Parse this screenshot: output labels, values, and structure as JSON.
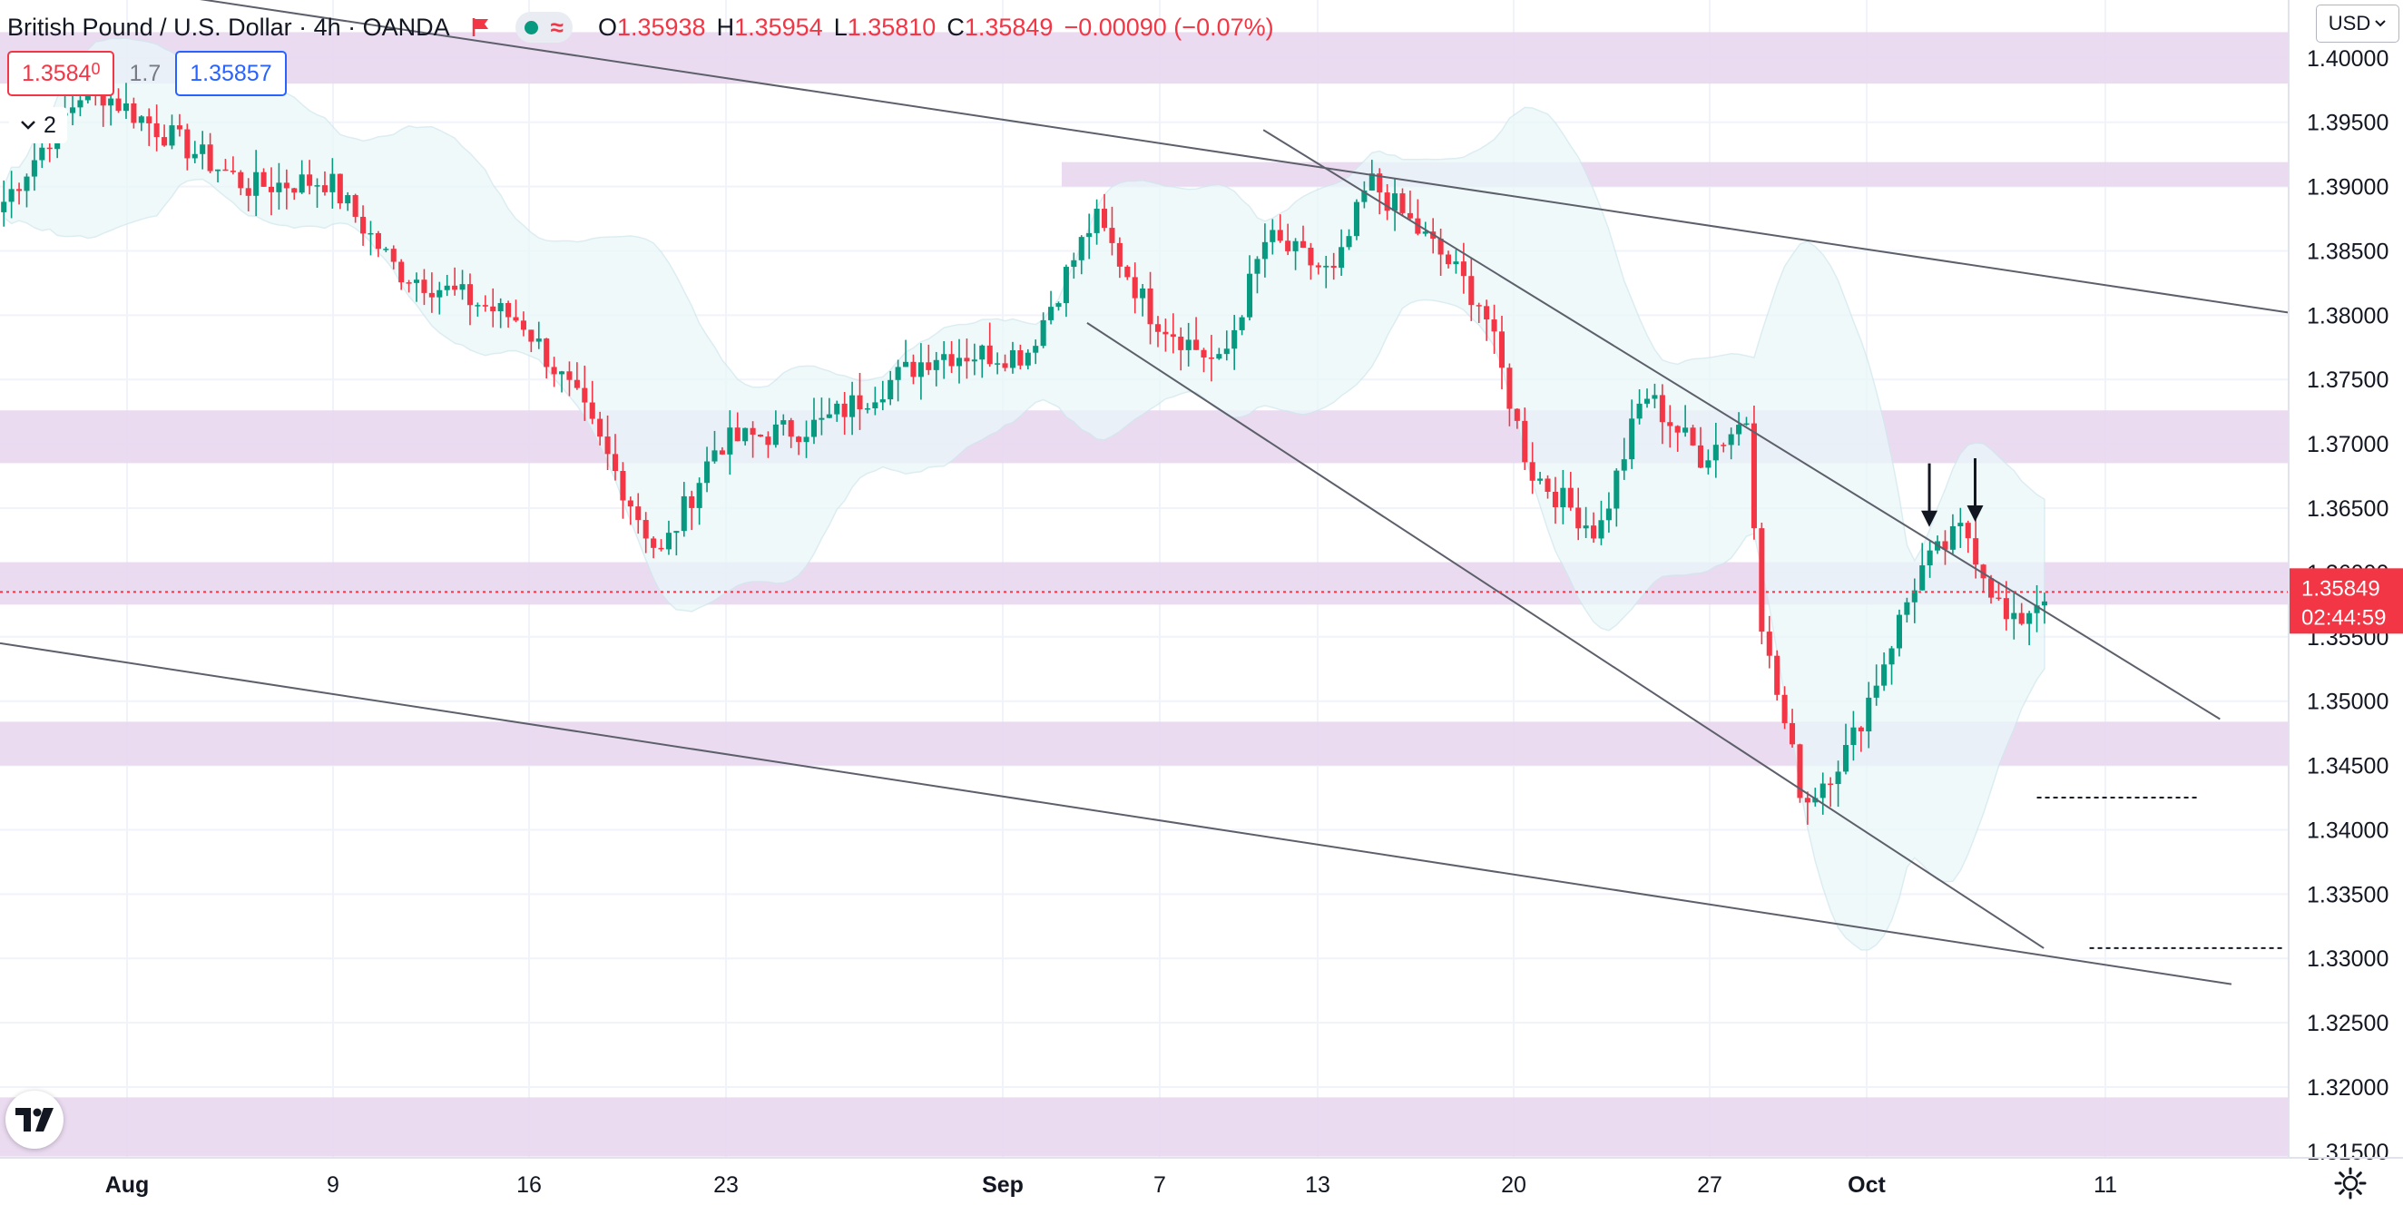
{
  "header": {
    "title": "British Pound / U.S. Dollar · 4h · OANDA",
    "ohlc": [
      {
        "key": "O",
        "value": "1.35938"
      },
      {
        "key": "H",
        "value": "1.35954"
      },
      {
        "key": "L",
        "value": "1.35810"
      },
      {
        "key": "C",
        "value": "1.35849"
      }
    ],
    "change": "−0.00090 (−0.07%)",
    "flag_icon": "flag-icon",
    "indicator_icons": [
      "dot-icon",
      "wave-icon"
    ]
  },
  "trade": {
    "sell_price_main": "1.3584",
    "sell_price_small": "0",
    "spread": "1.7",
    "buy_price": "1.35857"
  },
  "collapse": {
    "count": "2",
    "icon": "chevron-down-icon"
  },
  "currency": {
    "label": "USD"
  },
  "colors": {
    "up": "#089981",
    "down": "#f23645",
    "zone": "#e7d5ee",
    "band": "#eaf7f9"
  },
  "price_axis": {
    "ticks": [
      "1.40000",
      "1.39500",
      "1.39000",
      "1.38500",
      "1.38000",
      "1.37500",
      "1.37000",
      "1.36500",
      "1.36000",
      "1.35500",
      "1.35000",
      "1.34500",
      "1.34000",
      "1.33500",
      "1.33000",
      "1.32500",
      "1.32000",
      "1.31500"
    ],
    "current_price": "1.35849",
    "countdown": "02:44:59"
  },
  "time_axis": {
    "labels": [
      "Aug",
      "9",
      "16",
      "23",
      "Sep",
      "7",
      "13",
      "20",
      "27",
      "Oct",
      "11"
    ],
    "bold": [
      "Aug",
      "Sep",
      "Oct"
    ]
  },
  "chart_data": {
    "type": "candlestick",
    "symbol": "GBPUSD",
    "interval": "4h",
    "ylim": [
      1.3145,
      1.4045
    ],
    "x_categories": [
      "Aug",
      "9",
      "16",
      "23",
      "Sep",
      "7",
      "13",
      "20",
      "27",
      "Oct",
      "11"
    ],
    "zones": [
      {
        "from": 1.398,
        "to": 1.402
      },
      {
        "from": 1.39,
        "to": 1.3919
      },
      {
        "from": 1.3685,
        "to": 1.3726
      },
      {
        "from": 1.3575,
        "to": 1.3608
      },
      {
        "from": 1.345,
        "to": 1.3484
      },
      {
        "from": 1.3146,
        "to": 1.3192
      }
    ],
    "anchors": [
      {
        "x": 0.0,
        "y": 1.388
      },
      {
        "x": 0.04,
        "y": 1.398
      },
      {
        "x": 0.11,
        "y": 1.39
      },
      {
        "x": 0.145,
        "y": 1.3905
      },
      {
        "x": 0.175,
        "y": 1.3835
      },
      {
        "x": 0.23,
        "y": 1.3795
      },
      {
        "x": 0.255,
        "y": 1.373
      },
      {
        "x": 0.29,
        "y": 1.3612
      },
      {
        "x": 0.315,
        "y": 1.37
      },
      {
        "x": 0.36,
        "y": 1.3715
      },
      {
        "x": 0.41,
        "y": 1.377
      },
      {
        "x": 0.45,
        "y": 1.377
      },
      {
        "x": 0.48,
        "y": 1.3876
      },
      {
        "x": 0.505,
        "y": 1.38
      },
      {
        "x": 0.535,
        "y": 1.376
      },
      {
        "x": 0.555,
        "y": 1.386
      },
      {
        "x": 0.585,
        "y": 1.383
      },
      {
        "x": 0.6,
        "y": 1.3905
      },
      {
        "x": 0.635,
        "y": 1.384
      },
      {
        "x": 0.65,
        "y": 1.3805
      },
      {
        "x": 0.67,
        "y": 1.368
      },
      {
        "x": 0.7,
        "y": 1.363
      },
      {
        "x": 0.72,
        "y": 1.374
      },
      {
        "x": 0.745,
        "y": 1.369
      },
      {
        "x": 0.765,
        "y": 1.372
      },
      {
        "x": 0.772,
        "y": 1.355
      },
      {
        "x": 0.79,
        "y": 1.342
      },
      {
        "x": 0.81,
        "y": 1.3465
      },
      {
        "x": 0.84,
        "y": 1.36
      },
      {
        "x": 0.86,
        "y": 1.3635
      },
      {
        "x": 0.88,
        "y": 1.3555
      },
      {
        "x": 0.895,
        "y": 1.3585
      }
    ],
    "trendlines": [
      {
        "x1": 0.0,
        "y1": 1.4069,
        "x2": 1.0,
        "y2": 1.3802
      },
      {
        "x1": 0.0,
        "y1": 1.3545,
        "x2": 0.975,
        "y2": 1.328
      },
      {
        "x1": 0.552,
        "y1": 1.3944,
        "x2": 0.97,
        "y2": 1.3486
      },
      {
        "x1": 0.475,
        "y1": 1.3794,
        "x2": 0.893,
        "y2": 1.3308
      }
    ],
    "arrows": [
      {
        "x": 0.843,
        "y": 1.3634
      },
      {
        "x": 0.863,
        "y": 1.3638
      }
    ],
    "targets": [
      {
        "x1": 0.89,
        "x2": 0.96,
        "y": 1.3425
      },
      {
        "x1": 0.913,
        "x2": 0.998,
        "y": 1.3308
      }
    ]
  }
}
